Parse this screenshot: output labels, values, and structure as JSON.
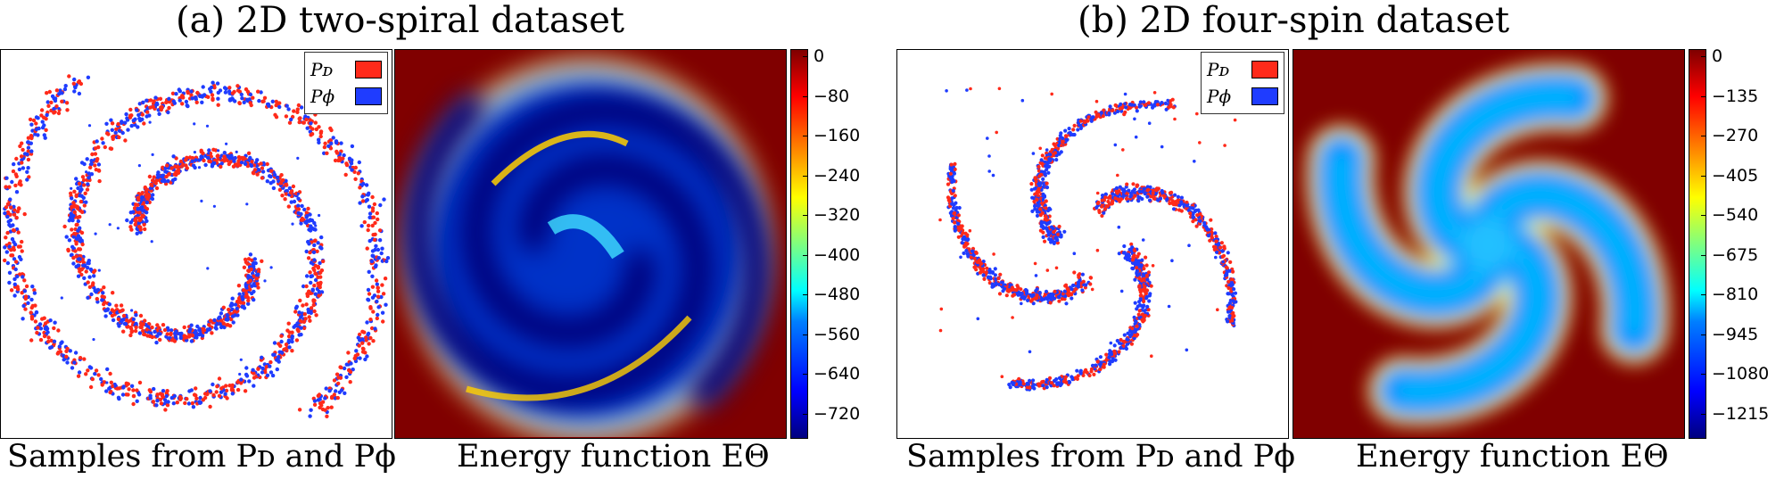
{
  "colors": {
    "pd": "#ff2a1a",
    "pphi": "#1f3cff",
    "energy_high": "#800000"
  },
  "panel_a": {
    "title": "(a) 2D two-spiral dataset",
    "left_caption": "Samples from Pᴅ and Pϕ",
    "right_caption": "Energy function EΘ",
    "legend": [
      {
        "label": "Pᴅ",
        "color_key": "pd"
      },
      {
        "label": "Pϕ",
        "color_key": "pphi"
      }
    ],
    "colorbar_ticks": [
      "0",
      "−80",
      "−160",
      "−240",
      "−320",
      "−400",
      "−480",
      "−560",
      "−640",
      "−720"
    ]
  },
  "panel_b": {
    "title": "(b) 2D four-spin dataset",
    "left_caption": "Samples from Pᴅ and Pϕ",
    "right_caption": "Energy function EΘ",
    "legend": [
      {
        "label": "Pᴅ",
        "color_key": "pd"
      },
      {
        "label": "Pϕ",
        "color_key": "pphi"
      }
    ],
    "colorbar_ticks": [
      "0",
      "−135",
      "−270",
      "−405",
      "−540",
      "−675",
      "−810",
      "−945",
      "−1080",
      "−1215"
    ]
  },
  "chart_data": [
    {
      "type": "scatter",
      "title": "(a) 2D two-spiral dataset",
      "caption": "Samples from Pᴅ and Pϕ",
      "series": [
        {
          "name": "Pᴅ",
          "description": "two interleaved spiral arms"
        },
        {
          "name": "Pϕ",
          "description": "two interleaved spiral arms"
        }
      ]
    },
    {
      "type": "heatmap",
      "caption": "Energy function EΘ",
      "colorbar": {
        "min": -720,
        "max": 0,
        "ticks": [
          0,
          -80,
          -160,
          -240,
          -320,
          -400,
          -480,
          -560,
          -640,
          -720
        ],
        "colormap": "jet"
      }
    },
    {
      "type": "scatter",
      "title": "(b) 2D four-spin dataset",
      "caption": "Samples from Pᴅ and Pϕ",
      "series": [
        {
          "name": "Pᴅ",
          "description": "four curved spin arms"
        },
        {
          "name": "Pϕ",
          "description": "four curved spin arms"
        }
      ]
    },
    {
      "type": "heatmap",
      "caption": "Energy function EΘ",
      "colorbar": {
        "min": -1215,
        "max": 0,
        "ticks": [
          0,
          -135,
          -270,
          -405,
          -540,
          -675,
          -810,
          -945,
          -1080,
          -1215
        ],
        "colormap": "jet"
      }
    }
  ]
}
